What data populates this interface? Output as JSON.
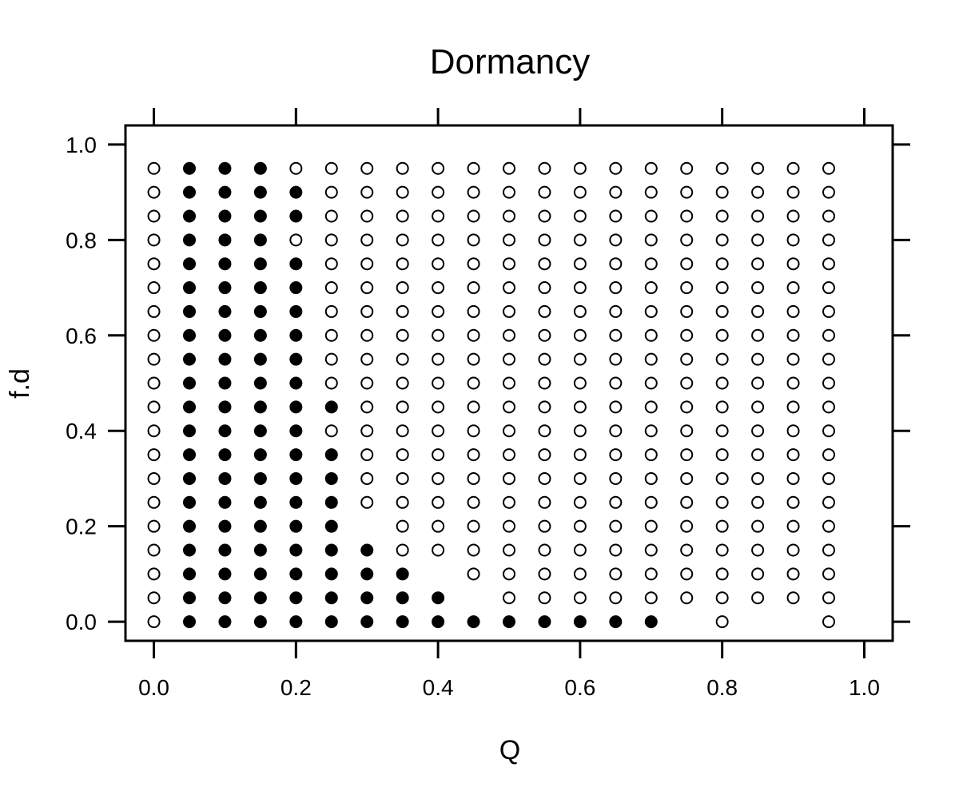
{
  "chart_data": {
    "type": "scatter",
    "title": "Dormancy",
    "xlabel": "Q",
    "ylabel": "f.d",
    "xlim": [
      -0.04,
      1.04
    ],
    "ylim": [
      -0.04,
      1.04
    ],
    "x_ticks": [
      "0.0",
      "0.2",
      "0.4",
      "0.6",
      "0.8",
      "1.0"
    ],
    "y_ticks": [
      "0.0",
      "0.2",
      "0.4",
      "0.6",
      "0.8",
      "1.0"
    ],
    "grid": false,
    "colors": {
      "filled": "#000000",
      "open_stroke": "#000000",
      "open_fill": "#ffffff"
    },
    "x_values": [
      0,
      0.05,
      0.1,
      0.15,
      0.2,
      0.25,
      0.3,
      0.35,
      0.4,
      0.45,
      0.5,
      0.55,
      0.6,
      0.65,
      0.7,
      0.75,
      0.8,
      0.85,
      0.9,
      0.95
    ],
    "y_values": [
      0,
      0.05,
      0.1,
      0.15,
      0.2,
      0.25,
      0.3,
      0.35,
      0.4,
      0.45,
      0.5,
      0.55,
      0.6,
      0.65,
      0.7,
      0.75,
      0.8,
      0.85,
      0.9,
      0.95
    ],
    "legend": {
      "F": "filled",
      "O": "open",
      ".": "no point"
    },
    "grid_rows_top_to_bottom": [
      "OFFFOOOOOOOOOOOOOOOO",
      "OFFFFOOOOOOOOOOOOOOO",
      "OFFFFOOOOOOOOOOOOOOO",
      "OFFFOOOOOOOOOOOOOOOO",
      "OFFFFOOOOOOOOOOOOOOO",
      "OFFFFOOOOOOOOOOOOOOO",
      "OFFFFOOOOOOOOOOOOOOO",
      "OFFFFOOOOOOOOOOOOOOO",
      "OFFFFOOOOOOOOOOOOOOO",
      "OFFFFOOOOOOOOOOOOOOO",
      "OFFFFFOOOOOOOOOOOOOO",
      "OFFFFOOOOOOOOOOOOOOO",
      "OFFFFFOOOOOOOOOOOOOO",
      "OFFFFFOOOOOOOOOOOOOO",
      "OFFFFFOOOOOOOOOOOOOO",
      "OFFFFF.OOOOOOOOOOOOO",
      "OFFFFFFOOOOOOOOOOOOO",
      "OFFFFFFF.OOOOOOOOOOO",
      "OFFFFFFFF.OOOOOOOOOO",
      "OFFFFFFFFFFFFFF.O..O"
    ]
  }
}
